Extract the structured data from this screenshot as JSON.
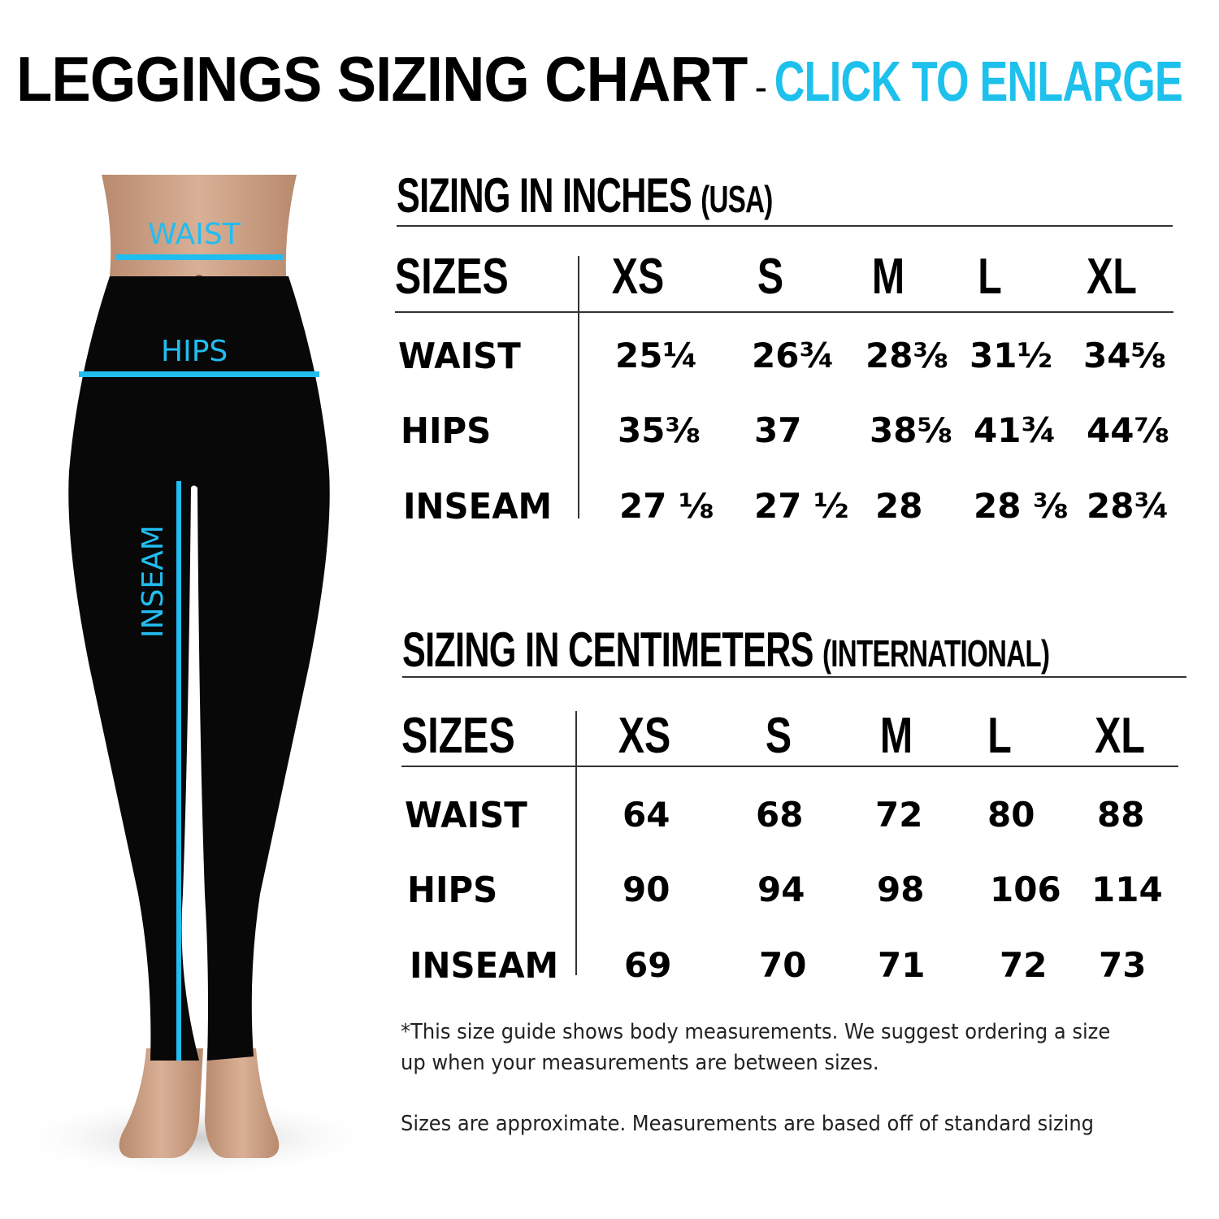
{
  "header": {
    "title": "LEGGINGS SIZING CHART",
    "separator": "-",
    "enlarge_link": "CLICK TO ENLARGE",
    "accent_color": "#1ec0ec"
  },
  "figure": {
    "labels": {
      "waist": "WAIST",
      "hips": "HIPS",
      "inseam": "INSEAM"
    },
    "measure_color": "#22bdf0"
  },
  "inches": {
    "title": "SIZING IN INCHES",
    "subtitle": "(USA)",
    "corner": "SIZES",
    "sizes": [
      "XS",
      "S",
      "M",
      "L",
      "XL"
    ],
    "rows": [
      {
        "label": "WAIST",
        "values": [
          "25¼",
          "26¾",
          "28⅜",
          "31½",
          "34⅝"
        ]
      },
      {
        "label": "HIPS",
        "values": [
          "35⅜",
          "37",
          "38⅝",
          "41¾",
          "44⅞"
        ]
      },
      {
        "label": "INSEAM",
        "values": [
          "27 ⅛",
          "27 ½",
          "28",
          "28 ⅜",
          "28¾"
        ]
      }
    ]
  },
  "centimeters": {
    "title": "SIZING IN CENTIMETERS",
    "subtitle": "(INTERNATIONAL)",
    "corner": "SIZES",
    "sizes": [
      "XS",
      "S",
      "M",
      "L",
      "XL"
    ],
    "rows": [
      {
        "label": "WAIST",
        "values": [
          "64",
          "68",
          "72",
          "80",
          "88"
        ]
      },
      {
        "label": "HIPS",
        "values": [
          "90",
          "94",
          "98",
          "106",
          "114"
        ]
      },
      {
        "label": "INSEAM",
        "values": [
          "69",
          "70",
          "71",
          "72",
          "73"
        ]
      }
    ]
  },
  "notes": {
    "line1": "*This size guide shows body measurements. We suggest ordering a size",
    "line2": "up when your measurements are between sizes.",
    "line3": "Sizes are approximate. Measurements are based off of standard sizing"
  }
}
